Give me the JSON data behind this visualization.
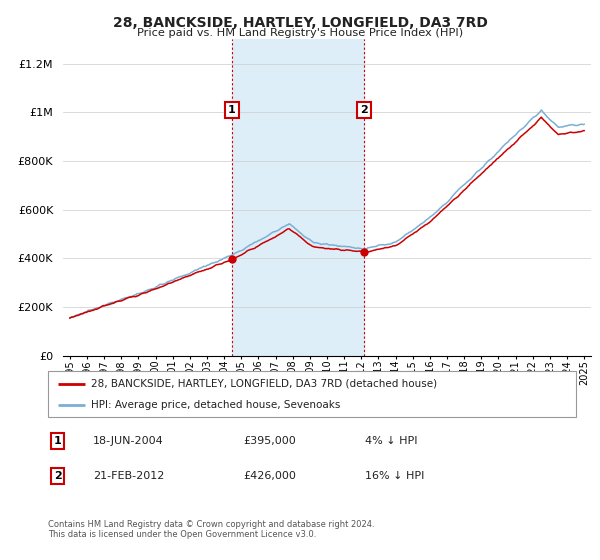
{
  "title": "28, BANCKSIDE, HARTLEY, LONGFIELD, DA3 7RD",
  "subtitle": "Price paid vs. HM Land Registry's House Price Index (HPI)",
  "legend_entry1": "28, BANCKSIDE, HARTLEY, LONGFIELD, DA3 7RD (detached house)",
  "legend_entry2": "HPI: Average price, detached house, Sevenoaks",
  "sale1_label": "1",
  "sale1_date": "18-JUN-2004",
  "sale1_price": "£395,000",
  "sale1_hpi": "4% ↓ HPI",
  "sale2_label": "2",
  "sale2_date": "21-FEB-2012",
  "sale2_price": "£426,000",
  "sale2_hpi": "16% ↓ HPI",
  "footnote": "Contains HM Land Registry data © Crown copyright and database right 2024.\nThis data is licensed under the Open Government Licence v3.0.",
  "line_color_red": "#cc0000",
  "line_color_blue": "#7ab0d4",
  "shade_color": "#deeef8",
  "marker_box_color": "#cc0000",
  "ylim": [
    0,
    1300000
  ],
  "yticks": [
    0,
    200000,
    400000,
    600000,
    800000,
    1000000,
    1200000
  ],
  "ytick_labels": [
    "£0",
    "£200K",
    "£400K",
    "£600K",
    "£800K",
    "£1M",
    "£1.2M"
  ],
  "sale1_year": 2004.46,
  "sale2_year": 2012.13,
  "sale1_price_val": 395000,
  "sale2_price_val": 426000,
  "bg_color": "#f5f5f5"
}
